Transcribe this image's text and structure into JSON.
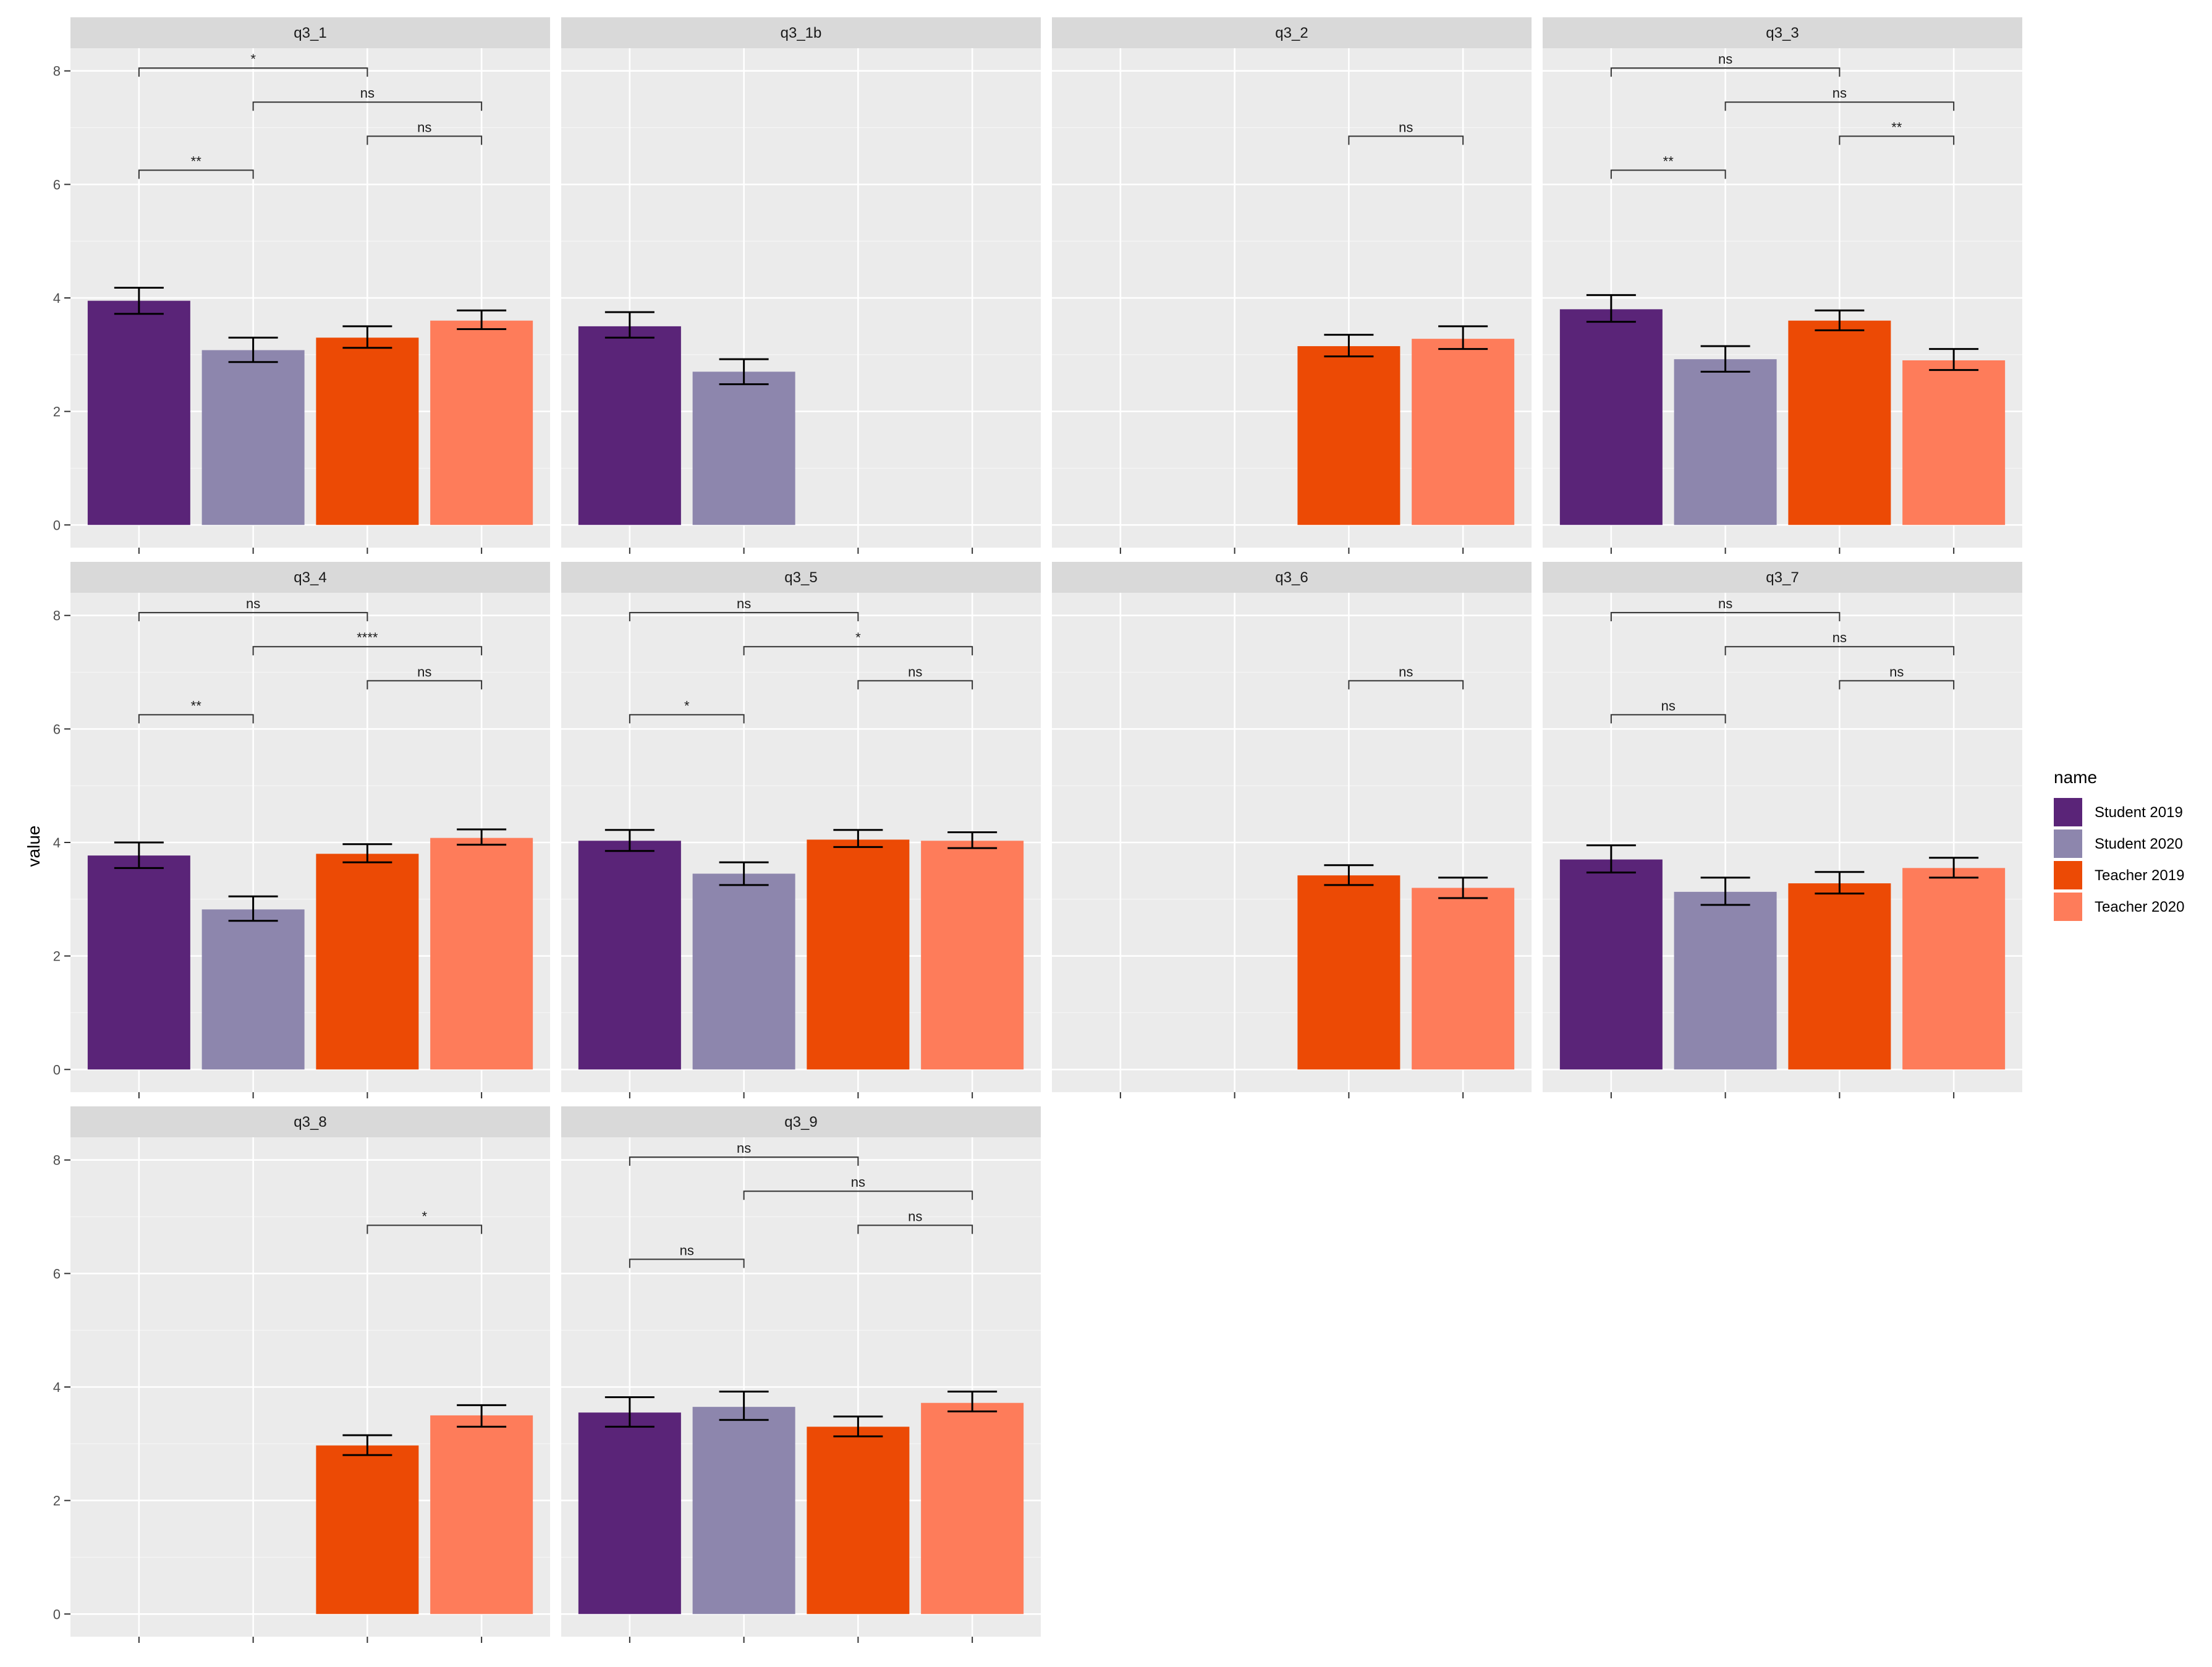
{
  "chart_data": {
    "type": "bar",
    "ylabel": "value",
    "xlabel": "",
    "ylim": [
      -0.4,
      8.4
    ],
    "y_ticks": [
      0,
      2,
      4,
      6,
      8
    ],
    "grid": true,
    "legend": {
      "title": "name",
      "position": "right",
      "entries": [
        "Student 2019",
        "Student 2020",
        "Teacher 2019",
        "Teacher 2020"
      ]
    },
    "series_colors": {
      "Student 2019": "#5a2478",
      "Student 2020": "#8d86ad",
      "Teacher 2019": "#ec4a05",
      "Teacher 2020": "#fe7c5a"
    },
    "colors": {
      "panel_bg": "#ebebeb",
      "strip_bg": "#d9d9d9",
      "grid": "#ffffff"
    },
    "categories": [
      "Student 2019",
      "Student 2020",
      "Teacher 2019",
      "Teacher 2020"
    ],
    "panels": [
      {
        "title": "q3_1",
        "bars": [
          {
            "value": 3.95,
            "err": [
              3.72,
              4.18
            ]
          },
          {
            "value": 3.08,
            "err": [
              2.87,
              3.3
            ]
          },
          {
            "value": 3.3,
            "err": [
              3.12,
              3.5
            ]
          },
          {
            "value": 3.6,
            "err": [
              3.45,
              3.78
            ]
          }
        ],
        "comparisons": [
          {
            "from": 1,
            "to": 3,
            "y": 8.05,
            "label": "*"
          },
          {
            "from": 2,
            "to": 4,
            "y": 7.45,
            "label": "ns"
          },
          {
            "from": 3,
            "to": 4,
            "y": 6.85,
            "label": "ns"
          },
          {
            "from": 1,
            "to": 2,
            "y": 6.25,
            "label": "**"
          }
        ]
      },
      {
        "title": "q3_1b",
        "bars": [
          {
            "value": 3.5,
            "err": [
              3.3,
              3.75
            ]
          },
          {
            "value": 2.7,
            "err": [
              2.48,
              2.92
            ]
          },
          null,
          null
        ],
        "comparisons": []
      },
      {
        "title": "q3_2",
        "bars": [
          null,
          null,
          {
            "value": 3.15,
            "err": [
              2.97,
              3.35
            ]
          },
          {
            "value": 3.28,
            "err": [
              3.1,
              3.5
            ]
          }
        ],
        "comparisons": [
          {
            "from": 3,
            "to": 4,
            "y": 6.85,
            "label": "ns"
          }
        ]
      },
      {
        "title": "q3_3",
        "bars": [
          {
            "value": 3.8,
            "err": [
              3.58,
              4.05
            ]
          },
          {
            "value": 2.92,
            "err": [
              2.7,
              3.15
            ]
          },
          {
            "value": 3.6,
            "err": [
              3.43,
              3.78
            ]
          },
          {
            "value": 2.9,
            "err": [
              2.73,
              3.1
            ]
          }
        ],
        "comparisons": [
          {
            "from": 1,
            "to": 3,
            "y": 8.05,
            "label": "ns"
          },
          {
            "from": 2,
            "to": 4,
            "y": 7.45,
            "label": "ns"
          },
          {
            "from": 3,
            "to": 4,
            "y": 6.85,
            "label": "**"
          },
          {
            "from": 1,
            "to": 2,
            "y": 6.25,
            "label": "**"
          }
        ]
      },
      {
        "title": "q3_4",
        "bars": [
          {
            "value": 3.77,
            "err": [
              3.55,
              4.0
            ]
          },
          {
            "value": 2.82,
            "err": [
              2.62,
              3.05
            ]
          },
          {
            "value": 3.8,
            "err": [
              3.65,
              3.97
            ]
          },
          {
            "value": 4.08,
            "err": [
              3.96,
              4.23
            ]
          }
        ],
        "comparisons": [
          {
            "from": 1,
            "to": 3,
            "y": 8.05,
            "label": "ns"
          },
          {
            "from": 2,
            "to": 4,
            "y": 7.45,
            "label": "****"
          },
          {
            "from": 3,
            "to": 4,
            "y": 6.85,
            "label": "ns"
          },
          {
            "from": 1,
            "to": 2,
            "y": 6.25,
            "label": "**"
          }
        ]
      },
      {
        "title": "q3_5",
        "bars": [
          {
            "value": 4.03,
            "err": [
              3.85,
              4.22
            ]
          },
          {
            "value": 3.45,
            "err": [
              3.25,
              3.65
            ]
          },
          {
            "value": 4.05,
            "err": [
              3.92,
              4.22
            ]
          },
          {
            "value": 4.03,
            "err": [
              3.9,
              4.18
            ]
          }
        ],
        "comparisons": [
          {
            "from": 1,
            "to": 3,
            "y": 8.05,
            "label": "ns"
          },
          {
            "from": 2,
            "to": 4,
            "y": 7.45,
            "label": "*"
          },
          {
            "from": 3,
            "to": 4,
            "y": 6.85,
            "label": "ns"
          },
          {
            "from": 1,
            "to": 2,
            "y": 6.25,
            "label": "*"
          }
        ]
      },
      {
        "title": "q3_6",
        "bars": [
          null,
          null,
          {
            "value": 3.42,
            "err": [
              3.25,
              3.6
            ]
          },
          {
            "value": 3.2,
            "err": [
              3.02,
              3.38
            ]
          }
        ],
        "comparisons": [
          {
            "from": 3,
            "to": 4,
            "y": 6.85,
            "label": "ns"
          }
        ]
      },
      {
        "title": "q3_7",
        "bars": [
          {
            "value": 3.7,
            "err": [
              3.47,
              3.95
            ]
          },
          {
            "value": 3.13,
            "err": [
              2.9,
              3.38
            ]
          },
          {
            "value": 3.28,
            "err": [
              3.1,
              3.48
            ]
          },
          {
            "value": 3.55,
            "err": [
              3.38,
              3.73
            ]
          }
        ],
        "comparisons": [
          {
            "from": 1,
            "to": 3,
            "y": 8.05,
            "label": "ns"
          },
          {
            "from": 2,
            "to": 4,
            "y": 7.45,
            "label": "ns"
          },
          {
            "from": 3,
            "to": 4,
            "y": 6.85,
            "label": "ns"
          },
          {
            "from": 1,
            "to": 2,
            "y": 6.25,
            "label": "ns"
          }
        ]
      },
      {
        "title": "q3_8",
        "bars": [
          null,
          null,
          {
            "value": 2.97,
            "err": [
              2.8,
              3.15
            ]
          },
          {
            "value": 3.5,
            "err": [
              3.3,
              3.68
            ]
          }
        ],
        "comparisons": [
          {
            "from": 3,
            "to": 4,
            "y": 6.85,
            "label": "*"
          }
        ]
      },
      {
        "title": "q3_9",
        "bars": [
          {
            "value": 3.55,
            "err": [
              3.3,
              3.82
            ]
          },
          {
            "value": 3.65,
            "err": [
              3.42,
              3.92
            ]
          },
          {
            "value": 3.3,
            "err": [
              3.13,
              3.48
            ]
          },
          {
            "value": 3.72,
            "err": [
              3.57,
              3.92
            ]
          }
        ],
        "comparisons": [
          {
            "from": 1,
            "to": 3,
            "y": 8.05,
            "label": "ns"
          },
          {
            "from": 2,
            "to": 4,
            "y": 7.45,
            "label": "ns"
          },
          {
            "from": 3,
            "to": 4,
            "y": 6.85,
            "label": "ns"
          },
          {
            "from": 1,
            "to": 2,
            "y": 6.25,
            "label": "ns"
          }
        ]
      }
    ]
  }
}
